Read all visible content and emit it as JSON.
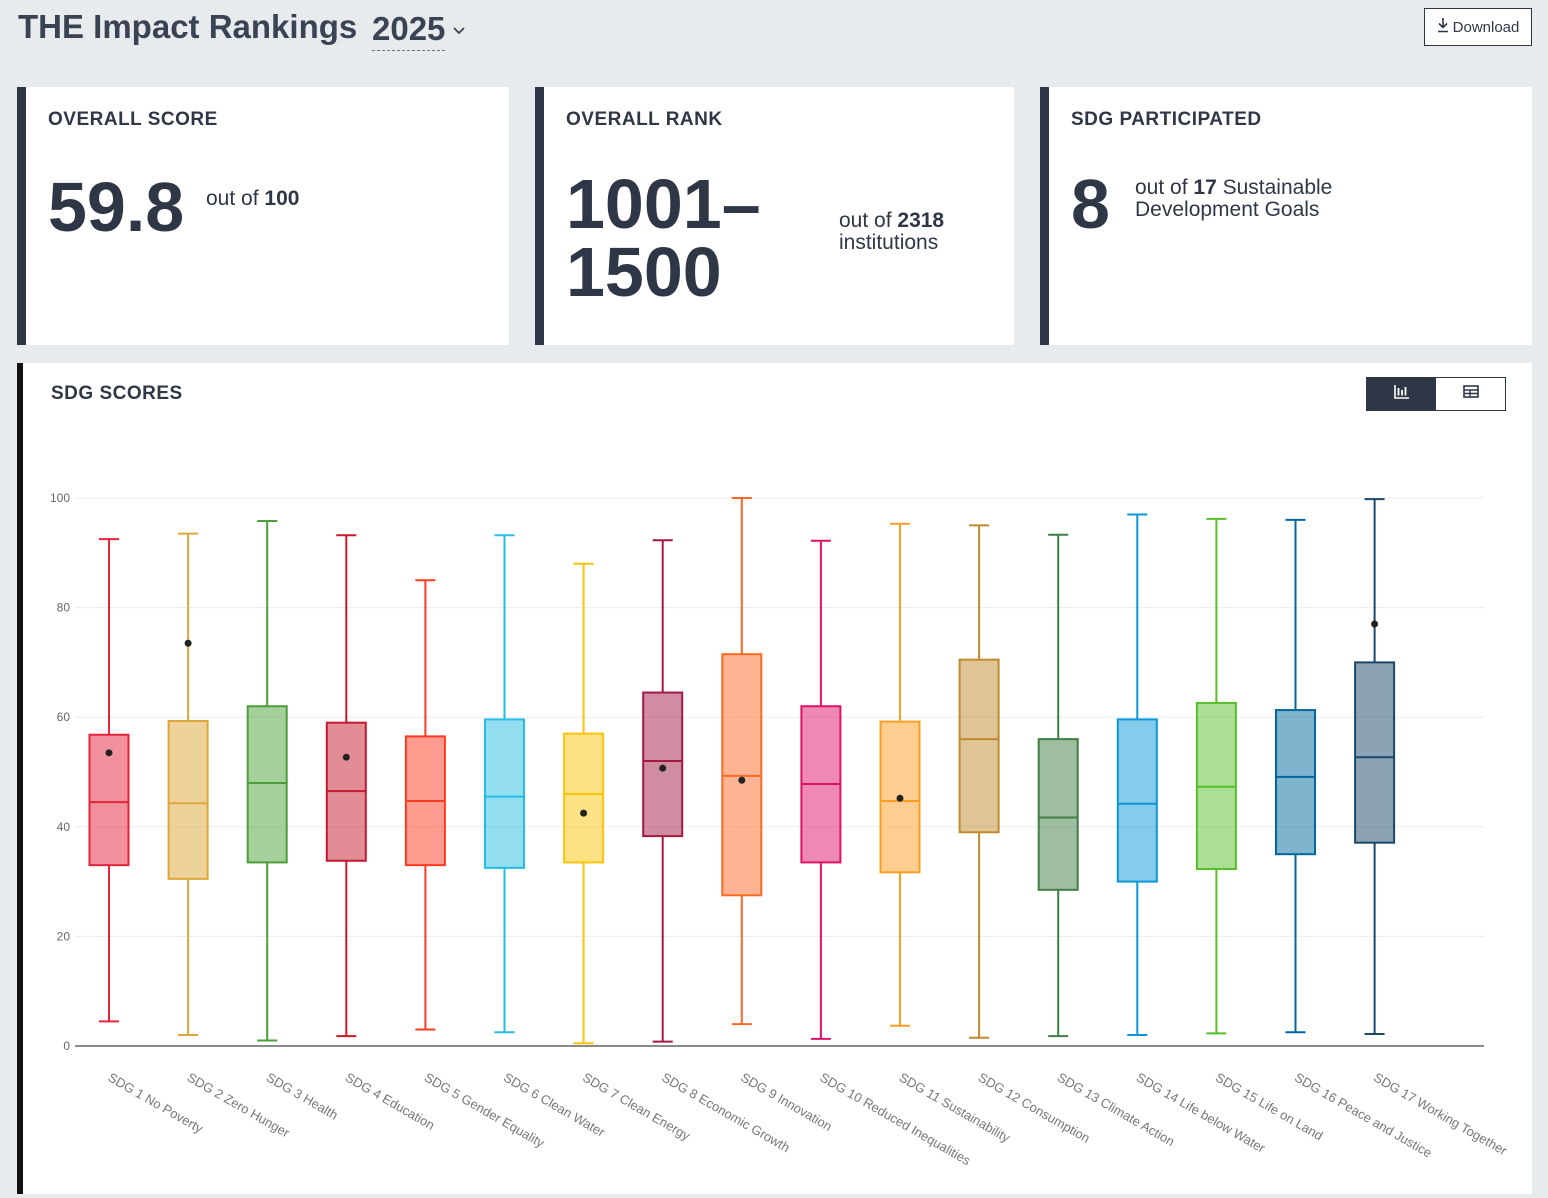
{
  "header": {
    "title": "THE Impact Rankings",
    "year": "2025",
    "download_label": "Download"
  },
  "cards": {
    "score": {
      "label": "OVERALL SCORE",
      "value": "59.8",
      "prefix": "out of",
      "max": "100"
    },
    "rank": {
      "label": "OVERALL RANK",
      "value_line1": "1001–",
      "value_line2": "1500",
      "prefix": "out of",
      "total": "2318",
      "suffix": "institutions"
    },
    "sdg": {
      "label": "SDG PARTICIPATED",
      "value": "8",
      "prefix": "out of",
      "total": "17",
      "suffix_line1": "Sustainable",
      "suffix_line2": "Development Goals"
    }
  },
  "panel": {
    "title": "SDG SCORES",
    "toggle_options": [
      "chart-view-icon",
      "table-view-icon"
    ],
    "active_view": "chart"
  },
  "chart_data": {
    "type": "box",
    "title": "",
    "xlabel": "",
    "ylabel": "",
    "ylim": [
      0,
      100
    ],
    "yticks": [
      0,
      20,
      40,
      60,
      80,
      100
    ],
    "grid": true,
    "categories": [
      "SDG 1 No Poverty",
      "SDG 2 Zero Hunger",
      "SDG 3 Health",
      "SDG 4 Education",
      "SDG 5 Gender Equality",
      "SDG 6 Clean Water",
      "SDG 7 Clean Energy",
      "SDG 8 Economic Growth",
      "SDG 9 Innovation",
      "SDG 10 Reduced Inequalities",
      "SDG 11 Sustainability",
      "SDG 12 Consumption",
      "SDG 13 Climate Action",
      "SDG 14 Life below Water",
      "SDG 15 Life on Land",
      "SDG 16 Peace and Justice",
      "SDG 17 Working Together"
    ],
    "colors": [
      "#e5243b",
      "#dda63a",
      "#4c9f38",
      "#c5192d",
      "#ff3a21",
      "#26bde2",
      "#fcc30b",
      "#a21942",
      "#fd6925",
      "#dd1367",
      "#fd9d24",
      "#bf8b2e",
      "#3f7e44",
      "#0a97d9",
      "#56c02b",
      "#00689d",
      "#19486a"
    ],
    "box": [
      {
        "min": 4.5,
        "q1": 33,
        "median": 44.5,
        "q3": 56.8,
        "max": 92.5,
        "institution": 53.5
      },
      {
        "min": 2,
        "q1": 30.5,
        "median": 44.3,
        "q3": 59.3,
        "max": 93.5,
        "institution": 73.5
      },
      {
        "min": 1,
        "q1": 33.5,
        "median": 48,
        "q3": 62,
        "max": 95.8,
        "institution": null
      },
      {
        "min": 1.8,
        "q1": 33.8,
        "median": 46.5,
        "q3": 59,
        "max": 93.2,
        "institution": 52.7
      },
      {
        "min": 3,
        "q1": 33,
        "median": 44.7,
        "q3": 56.5,
        "max": 85,
        "institution": null
      },
      {
        "min": 2.5,
        "q1": 32.5,
        "median": 45.5,
        "q3": 59.6,
        "max": 93.2,
        "institution": null
      },
      {
        "min": 0.5,
        "q1": 33.5,
        "median": 46,
        "q3": 57,
        "max": 88,
        "institution": 42.5
      },
      {
        "min": 0.8,
        "q1": 38.3,
        "median": 52,
        "q3": 64.5,
        "max": 92.3,
        "institution": 50.7
      },
      {
        "min": 4,
        "q1": 27.5,
        "median": 49.3,
        "q3": 71.5,
        "max": 100,
        "institution": 48.5
      },
      {
        "min": 1.3,
        "q1": 33.5,
        "median": 47.8,
        "q3": 62,
        "max": 92.2,
        "institution": null
      },
      {
        "min": 3.7,
        "q1": 31.7,
        "median": 44.7,
        "q3": 59.2,
        "max": 95.3,
        "institution": 45.2
      },
      {
        "min": 1.5,
        "q1": 39,
        "median": 56,
        "q3": 70.5,
        "max": 95,
        "institution": null
      },
      {
        "min": 1.8,
        "q1": 28.5,
        "median": 41.7,
        "q3": 56,
        "max": 93.3,
        "institution": null
      },
      {
        "min": 2,
        "q1": 30,
        "median": 44.2,
        "q3": 59.6,
        "max": 97,
        "institution": null
      },
      {
        "min": 2.3,
        "q1": 32.3,
        "median": 47.3,
        "q3": 62.6,
        "max": 96.2,
        "institution": null
      },
      {
        "min": 2.5,
        "q1": 35,
        "median": 49.1,
        "q3": 61.3,
        "max": 96,
        "institution": null
      },
      {
        "min": 2.2,
        "q1": 37.1,
        "median": 52.7,
        "q3": 70,
        "max": 99.8,
        "institution": 77
      }
    ]
  }
}
